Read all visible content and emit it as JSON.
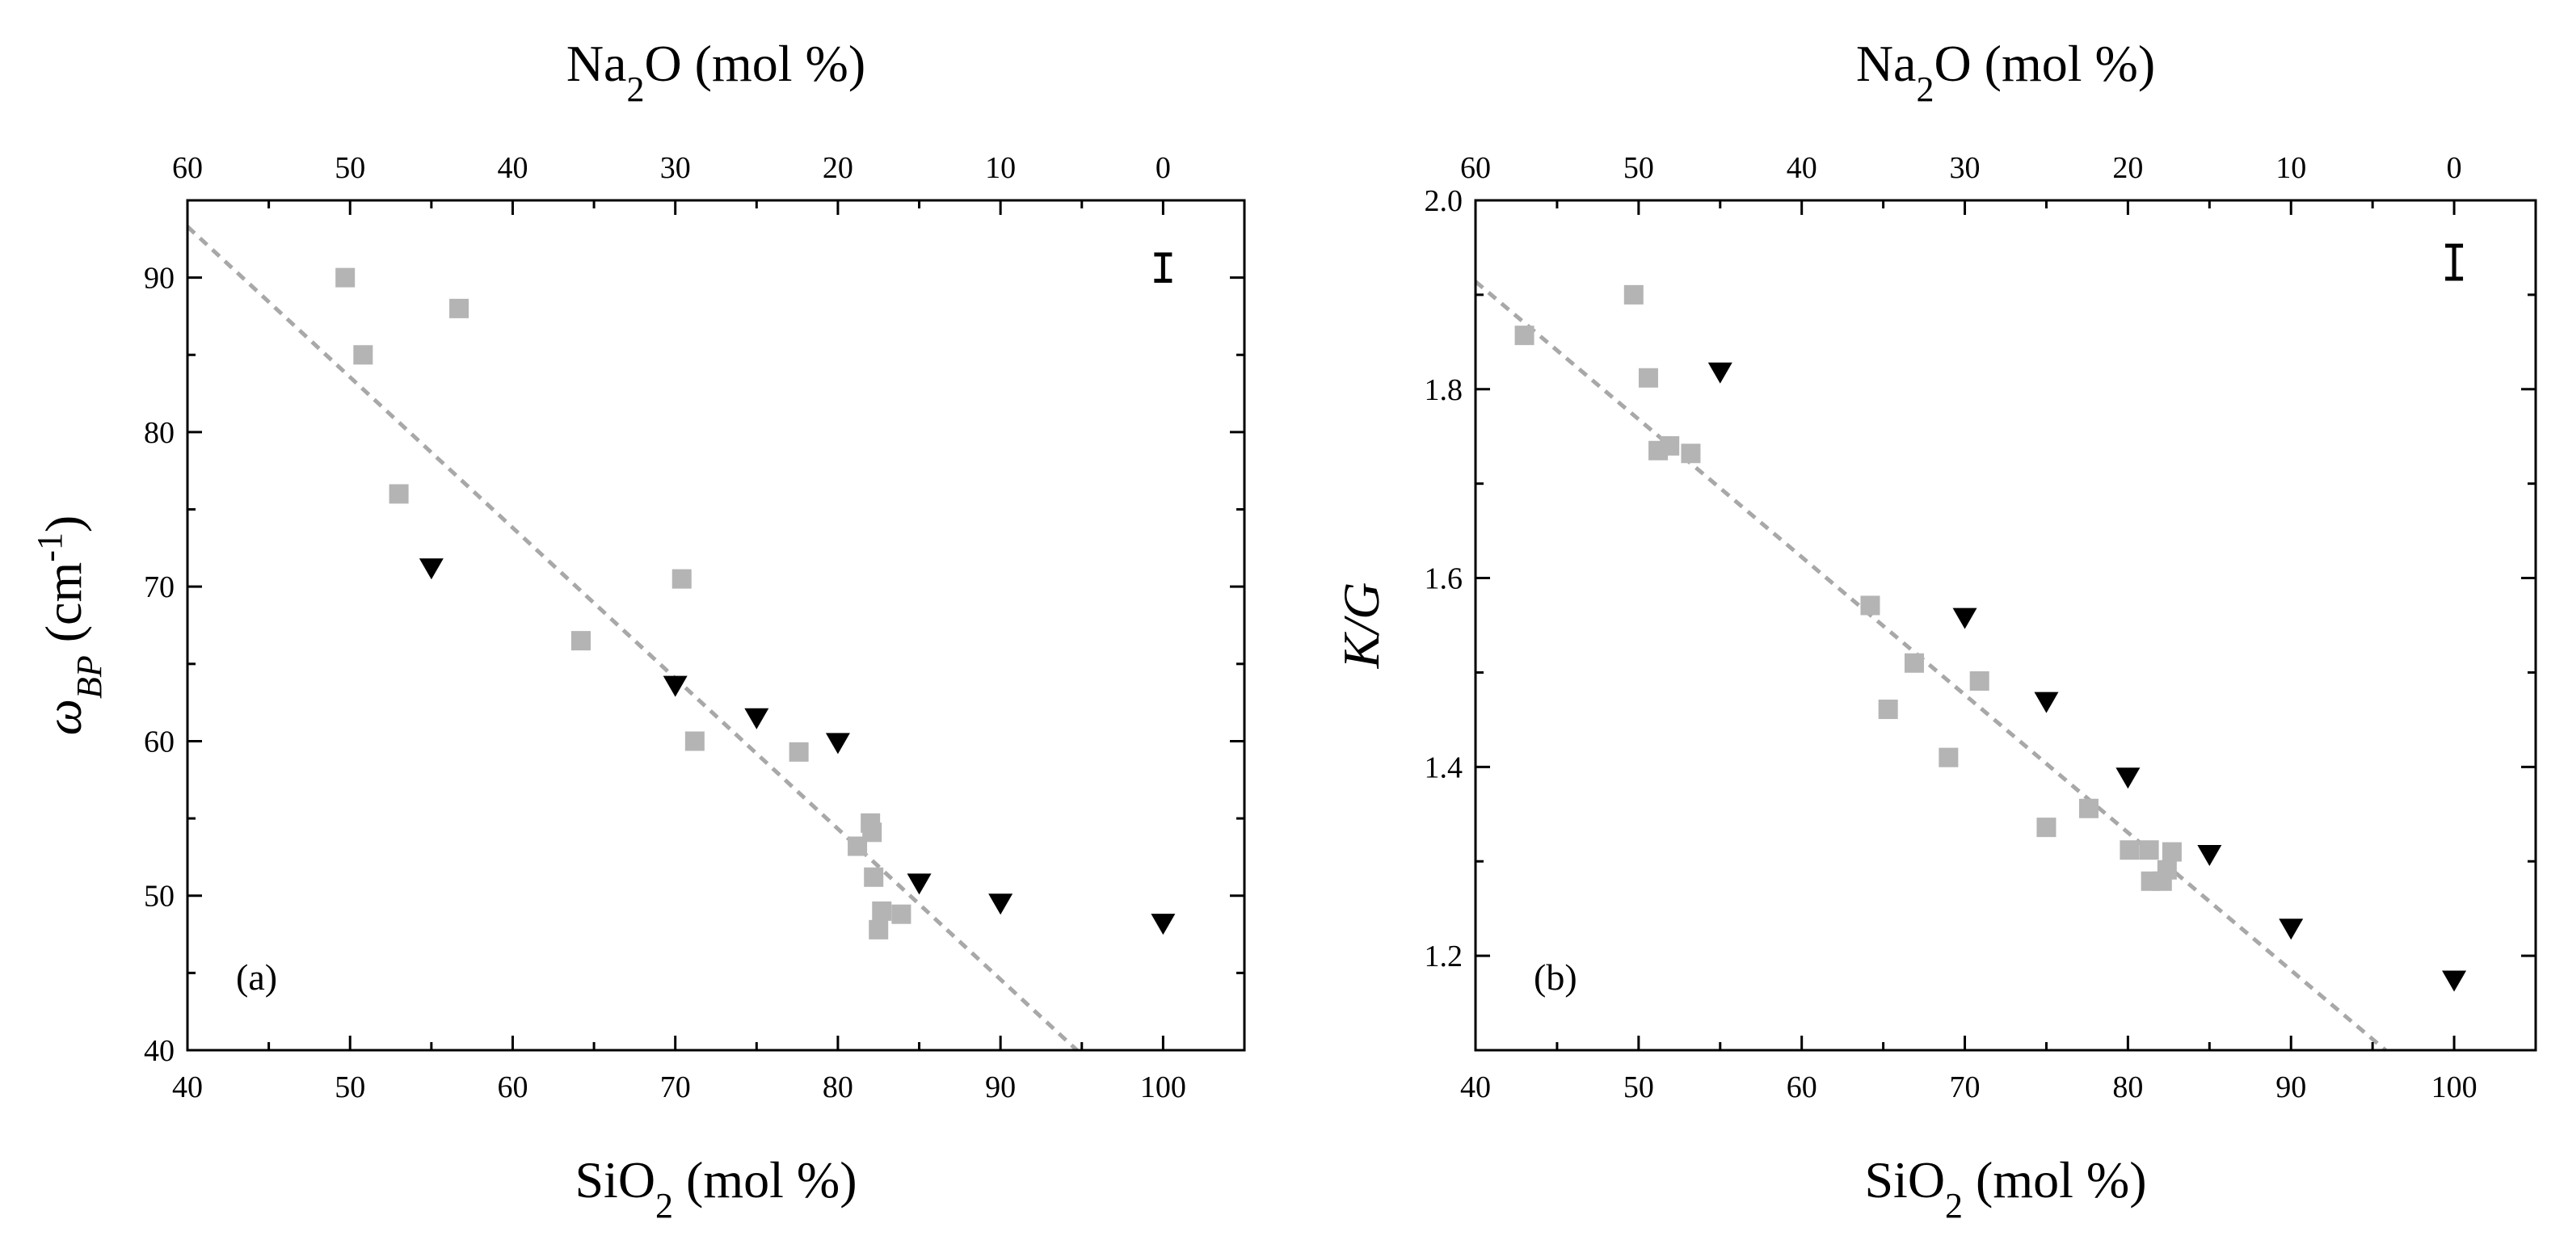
{
  "chart_data": [
    {
      "type": "scatter",
      "panel_label": "(a)",
      "xlabel": {
        "pre": "SiO",
        "sub": "2",
        "post": " (mol %)"
      },
      "top_xlabel": {
        "pre": "Na",
        "sub": "2",
        "post": "O (mol %)"
      },
      "ylabel": {
        "main": "ω",
        "sub": "BP",
        "unit_pre": " (cm",
        "sup": "-1",
        "unit_post": ")"
      },
      "xlim": [
        40,
        105
      ],
      "ylim": [
        40,
        95
      ],
      "x_ticks": [
        40,
        50,
        60,
        70,
        80,
        90,
        100
      ],
      "y_ticks": [
        40,
        50,
        60,
        70,
        80,
        90
      ],
      "top_ticks": [
        60,
        50,
        40,
        30,
        20,
        10,
        0
      ],
      "series": [
        {
          "name": "gray squares",
          "marker": "square",
          "points": [
            [
              49.7,
              90.0
            ],
            [
              50.8,
              85.0
            ],
            [
              53.0,
              76.0
            ],
            [
              56.7,
              88.0
            ],
            [
              64.2,
              66.5
            ],
            [
              70.4,
              70.5
            ],
            [
              71.2,
              60.0
            ],
            [
              77.6,
              59.3
            ],
            [
              81.2,
              53.2
            ],
            [
              82.0,
              54.7
            ],
            [
              82.1,
              54.1
            ],
            [
              82.2,
              51.2
            ],
            [
              82.5,
              47.8
            ],
            [
              82.7,
              49.0
            ],
            [
              83.9,
              48.8
            ]
          ]
        },
        {
          "name": "black triangles",
          "marker": "triangle-down",
          "points": [
            [
              55,
              71.2
            ],
            [
              70,
              63.6
            ],
            [
              75,
              61.5
            ],
            [
              80,
              59.9
            ],
            [
              85,
              50.8
            ],
            [
              90,
              49.5
            ],
            [
              100,
              48.2
            ]
          ]
        }
      ],
      "fit_line": [
        [
          40,
          93.3
        ],
        [
          94.7,
          40
        ]
      ],
      "error_bar": {
        "x": 100,
        "y_low": 89.8,
        "y_high": 91.5
      }
    },
    {
      "type": "scatter",
      "panel_label": "(b)",
      "xlabel": {
        "pre": "SiO",
        "sub": "2",
        "post": " (mol %)"
      },
      "top_xlabel": {
        "pre": "Na",
        "sub": "2",
        "post": "O (mol %)"
      },
      "ylabel": {
        "main": "K/G"
      },
      "xlim": [
        40,
        105
      ],
      "ylim": [
        1.1,
        2.0
      ],
      "x_ticks": [
        40,
        50,
        60,
        70,
        80,
        90,
        100
      ],
      "y_ticks": [
        1.2,
        1.4,
        1.6,
        1.8,
        2.0
      ],
      "y_tick_labels": [
        "1.2",
        "1.4",
        "1.6",
        "1.8",
        "2.0"
      ],
      "top_ticks": [
        60,
        50,
        40,
        30,
        20,
        10,
        0
      ],
      "series": [
        {
          "name": "gray squares",
          "marker": "square",
          "points": [
            [
              43.0,
              1.857
            ],
            [
              49.7,
              1.9
            ],
            [
              50.6,
              1.812
            ],
            [
              51.2,
              1.735
            ],
            [
              51.9,
              1.74
            ],
            [
              53.2,
              1.732
            ],
            [
              64.2,
              1.571
            ],
            [
              65.3,
              1.461
            ],
            [
              66.9,
              1.51
            ],
            [
              69.0,
              1.41
            ],
            [
              70.9,
              1.491
            ],
            [
              75.0,
              1.336
            ],
            [
              77.6,
              1.356
            ],
            [
              80.1,
              1.312
            ],
            [
              81.3,
              1.312
            ],
            [
              81.4,
              1.279
            ],
            [
              82.1,
              1.279
            ],
            [
              82.4,
              1.291
            ],
            [
              82.7,
              1.31
            ]
          ]
        },
        {
          "name": "black triangles",
          "marker": "triangle-down",
          "points": [
            [
              55,
              1.818
            ],
            [
              70,
              1.558
            ],
            [
              75,
              1.469
            ],
            [
              80,
              1.389
            ],
            [
              85,
              1.307
            ],
            [
              90,
              1.229
            ],
            [
              100,
              1.174
            ]
          ]
        }
      ],
      "fit_line": [
        [
          40,
          1.914
        ],
        [
          95.8,
          1.1
        ]
      ],
      "error_bar": {
        "x": 100,
        "y_low": 1.917,
        "y_high": 1.952
      }
    }
  ]
}
